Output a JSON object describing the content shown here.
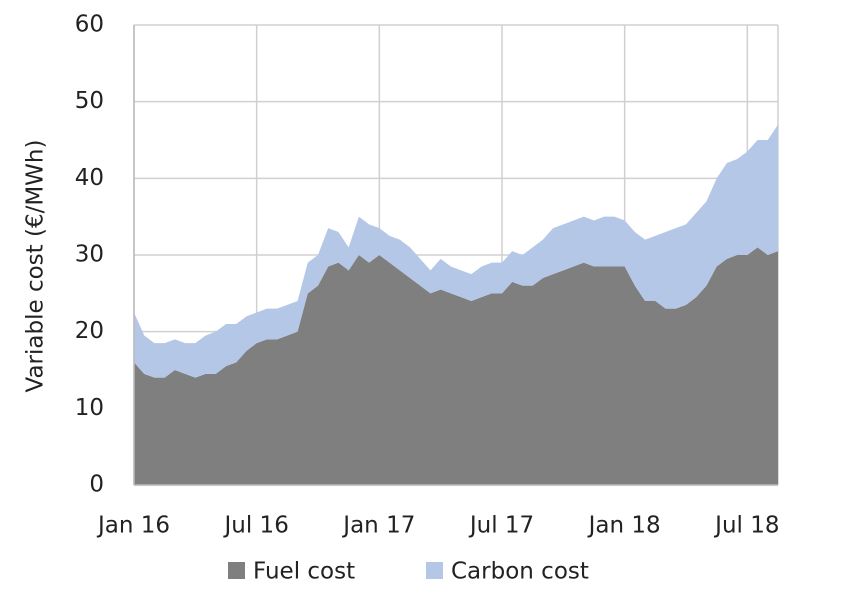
{
  "chart_data": {
    "type": "area",
    "stacked": true,
    "y_label": "Variable cost (€/MWh)",
    "categories": [
      "Jan 16",
      null,
      null,
      null,
      null,
      null,
      null,
      null,
      null,
      null,
      null,
      null,
      "Jul 16",
      null,
      null,
      null,
      null,
      null,
      null,
      null,
      null,
      null,
      null,
      null,
      "Jan 17",
      null,
      null,
      null,
      null,
      null,
      null,
      null,
      null,
      null,
      null,
      null,
      "Jul 17",
      null,
      null,
      null,
      null,
      null,
      null,
      null,
      null,
      null,
      null,
      null,
      "Jan 18",
      null,
      null,
      null,
      null,
      null,
      null,
      null,
      null,
      null,
      null,
      null,
      "Jul 18",
      null,
      null,
      null
    ],
    "series": [
      {
        "name": "Fuel cost",
        "color": "#7f7f7f",
        "values": [
          16,
          14.5,
          14,
          14,
          15,
          14.5,
          14,
          14.5,
          14.5,
          15.5,
          16,
          17.5,
          18.5,
          19,
          19,
          19.5,
          20,
          25,
          26,
          28.5,
          29,
          28,
          30,
          29,
          30,
          29,
          28,
          27,
          26,
          25,
          25.5,
          25,
          24.5,
          24,
          24.5,
          25,
          25,
          26.5,
          26,
          26,
          27,
          27.5,
          28,
          28.5,
          29,
          28.5,
          28.5,
          28.5,
          28.5,
          26,
          24,
          24,
          23,
          23,
          23.5,
          24.5,
          26,
          28.5,
          29.5,
          30,
          30,
          31,
          30,
          30.5
        ]
      },
      {
        "name": "Carbon cost",
        "color": "#b4c7e7",
        "values": [
          6.5,
          5,
          4.5,
          4.5,
          4,
          4,
          4.5,
          5,
          5.5,
          5.5,
          5,
          4.5,
          4,
          4,
          4,
          4,
          4,
          4,
          4,
          5,
          4,
          3,
          5,
          5,
          3.5,
          3.5,
          4,
          4,
          3.5,
          3,
          4,
          3.5,
          3.5,
          3.5,
          4,
          4,
          4,
          4,
          4,
          5,
          5,
          6,
          6,
          6,
          6,
          6,
          6.5,
          6.5,
          6,
          7,
          8,
          8.5,
          10,
          10.5,
          10.5,
          11,
          11,
          11.5,
          12.5,
          12.5,
          13.5,
          14,
          15,
          16.5
        ]
      }
    ],
    "ylim": [
      0,
      60
    ],
    "yticks": [
      0,
      10,
      20,
      30,
      40,
      50,
      60
    ],
    "grid": true,
    "legend": "bottom"
  }
}
